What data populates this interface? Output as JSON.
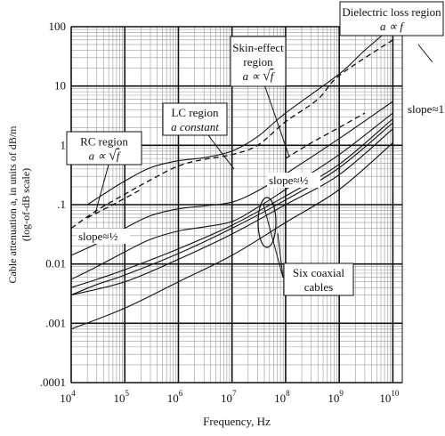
{
  "chart_data": {
    "type": "line",
    "x_scale": "log",
    "y_scale": "log",
    "xlim": [
      10000,
      15000000000
    ],
    "ylim": [
      0.0001,
      100
    ],
    "x_ticks": [
      {
        "base": "10",
        "exp": "4"
      },
      {
        "base": "10",
        "exp": "5"
      },
      {
        "base": "10",
        "exp": "6"
      },
      {
        "base": "10",
        "exp": "7"
      },
      {
        "base": "10",
        "exp": "8"
      },
      {
        "base": "10",
        "exp": "9"
      },
      {
        "base": "10",
        "exp": "10"
      }
    ],
    "y_ticks": [
      {
        "value": 100,
        "label": "100"
      },
      {
        "value": 10,
        "label": "10"
      },
      {
        "value": 1,
        "label": "1"
      },
      {
        "value": 0.1,
        "label": ".1"
      },
      {
        "value": 0.01,
        "label": "0.01"
      },
      {
        "value": 0.001,
        "label": ".001"
      },
      {
        "value": 0.0001,
        "label": ".0001"
      }
    ],
    "xlabel": "Frequency, Hz",
    "ylabel": "Cable attenuation a, in units of dB/m",
    "ylabel_sub": "(log-of-dB scale)",
    "grid": true,
    "series": [
      {
        "style": "dashed",
        "points": [
          [
            10000,
            0.04
          ],
          [
            30000,
            0.08
          ],
          [
            100000,
            0.15
          ],
          [
            300000,
            0.26
          ],
          [
            1000000,
            0.45
          ],
          [
            3000000,
            0.58
          ],
          [
            10000000,
            0.7
          ],
          [
            30000000,
            1.0
          ],
          [
            100000000,
            2.5
          ],
          [
            400000000,
            6
          ],
          [
            1000000000,
            15
          ],
          [
            10000000000,
            60
          ]
        ]
      },
      {
        "style": "solid",
        "points": [
          [
            20000,
            0.1
          ],
          [
            50000,
            0.17
          ],
          [
            100000,
            0.25
          ],
          [
            300000,
            0.42
          ],
          [
            1000000,
            0.55
          ],
          [
            3000000,
            0.62
          ],
          [
            10000000,
            0.8
          ],
          [
            30000000,
            1.4
          ],
          [
            100000000,
            3.5
          ],
          [
            1000000000,
            16
          ],
          [
            3000000000,
            40
          ],
          [
            15000000000,
            140
          ]
        ]
      },
      {
        "style": "solid",
        "points": [
          [
            10000,
            0.014
          ],
          [
            30000,
            0.022
          ],
          [
            100000,
            0.04
          ],
          [
            300000,
            0.065
          ],
          [
            1000000,
            0.085
          ],
          [
            3000000,
            0.095
          ],
          [
            10000000,
            0.11
          ],
          [
            30000000,
            0.17
          ],
          [
            100000000,
            0.33
          ],
          [
            1000000000,
            1.3
          ],
          [
            10000000000,
            5.5
          ]
        ]
      },
      {
        "style": "solid",
        "points": [
          [
            10000,
            0.0055
          ],
          [
            30000,
            0.009
          ],
          [
            100000,
            0.016
          ],
          [
            300000,
            0.026
          ],
          [
            1000000,
            0.036
          ],
          [
            3000000,
            0.042
          ],
          [
            10000000,
            0.052
          ],
          [
            30000000,
            0.09
          ],
          [
            100000000,
            0.18
          ],
          [
            1000000000,
            0.7
          ],
          [
            10000000000,
            3.5
          ]
        ]
      },
      {
        "style": "solid",
        "points": [
          [
            10000,
            0.004
          ],
          [
            30000,
            0.0055
          ],
          [
            100000,
            0.008
          ],
          [
            1000000,
            0.018
          ],
          [
            10000000,
            0.045
          ],
          [
            100000000,
            0.14
          ],
          [
            1000000000,
            0.48
          ],
          [
            10000000000,
            2.8
          ]
        ]
      },
      {
        "style": "solid",
        "points": [
          [
            10000,
            0.003
          ],
          [
            30000,
            0.0045
          ],
          [
            100000,
            0.0065
          ],
          [
            1000000,
            0.015
          ],
          [
            10000000,
            0.04
          ],
          [
            100000000,
            0.12
          ],
          [
            1000000000,
            0.42
          ],
          [
            10000000000,
            2.4
          ]
        ]
      },
      {
        "style": "solid",
        "points": [
          [
            10000,
            0.003
          ],
          [
            100000,
            0.005
          ],
          [
            1000000,
            0.012
          ],
          [
            10000000,
            0.032
          ],
          [
            100000000,
            0.1
          ],
          [
            1000000000,
            0.32
          ],
          [
            10000000000,
            1.9
          ]
        ]
      },
      {
        "style": "solid",
        "points": [
          [
            10000,
            0.0008
          ],
          [
            100000,
            0.0018
          ],
          [
            1000000,
            0.005
          ],
          [
            10000000,
            0.014
          ],
          [
            100000000,
            0.05
          ],
          [
            1000000000,
            0.18
          ],
          [
            10000000000,
            1.1
          ]
        ]
      },
      {
        "style": "dashed",
        "points": [
          [
            100000000,
            0.6
          ],
          [
            300000000,
            1.1
          ],
          [
            1000000000,
            2.0
          ],
          [
            3000000000,
            3.5
          ]
        ]
      },
      {
        "style": "dashed",
        "points": [
          [
            20000,
            0.06
          ],
          [
            60000,
            0.1
          ],
          [
            200000,
            0.18
          ]
        ]
      }
    ],
    "annotations": [
      {
        "name": "dielectric",
        "lines": [
          "Dielectric loss region",
          "a ∝ f"
        ],
        "anchor": [
          700000000,
          110
        ]
      },
      {
        "name": "skin-effect",
        "lines": [
          "Skin-effect",
          "region",
          "a ∝ √f"
        ],
        "anchor": [
          90000000,
          20
        ]
      },
      {
        "name": "lc-region",
        "lines": [
          "LC region",
          "a constant"
        ],
        "anchor": [
          2500000,
          5
        ]
      },
      {
        "name": "rc-region",
        "lines": [
          "RC region",
          "a ∝ √f"
        ],
        "anchor": [
          50000,
          1.0
        ]
      },
      {
        "name": "six-coaxial",
        "lines": [
          "Six coaxial",
          "cables"
        ],
        "anchor": [
          300000000,
          0.008
        ]
      }
    ],
    "labels": [
      {
        "text": "slope≈1",
        "at": [
          10000000000,
          8
        ]
      },
      {
        "text": "slope≈½",
        "at": [
          200000000,
          0.3
        ]
      },
      {
        "text": "slope≈½",
        "at": [
          60000,
          0.05
        ]
      }
    ]
  }
}
